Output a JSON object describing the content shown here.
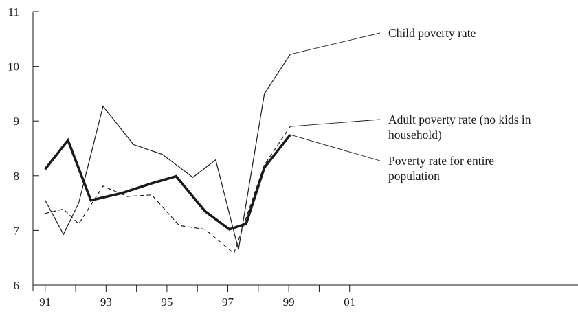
{
  "chart_data": {
    "type": "line",
    "x": [
      1991,
      1992,
      1993,
      1994,
      1995,
      1996,
      1997,
      1998,
      1999,
      2000,
      2001
    ],
    "xlim": [
      1990.6,
      2008.5
    ],
    "ylim": [
      6,
      11
    ],
    "x_ticks": [
      1991,
      1992,
      1993,
      1994,
      1995,
      1996,
      1997,
      1998,
      1999,
      2000,
      2001
    ],
    "x_tick_labels": [
      {
        "x": 1991,
        "label": "91"
      },
      {
        "x": 1993,
        "label": "93"
      },
      {
        "x": 1995,
        "label": "95"
      },
      {
        "x": 1997,
        "label": "97"
      },
      {
        "x": 1999,
        "label": "99"
      },
      {
        "x": 2001,
        "label": "01"
      }
    ],
    "y_ticks": [
      6,
      7,
      8,
      9,
      10,
      11
    ],
    "y_tick_labels": [
      "6",
      "7",
      "8",
      "9",
      "10",
      "11"
    ],
    "grid": false,
    "title": "",
    "xlabel": "",
    "ylabel": "",
    "series": [
      {
        "name": "Child poverty rate",
        "style": "thin-solid",
        "color": "#1a1a1a",
        "label_lines": [
          "Child poverty rate"
        ],
        "points": [
          [
            1991,
            7.55
          ],
          [
            1991.6,
            6.93
          ],
          [
            1992.1,
            7.5
          ],
          [
            1992.9,
            9.27
          ],
          [
            1993.9,
            8.57
          ],
          [
            1994.85,
            8.39
          ],
          [
            1995.85,
            7.97
          ],
          [
            1996.6,
            8.29
          ],
          [
            1997.35,
            6.65
          ],
          [
            1998.2,
            9.5
          ],
          [
            1999.05,
            10.22
          ]
        ]
      },
      {
        "name": "Adult poverty rate (no kids in household)",
        "style": "dashed",
        "color": "#1a1a1a",
        "label_lines": [
          "Adult poverty rate (no kids in",
          "household)"
        ],
        "points": [
          [
            1991,
            7.31
          ],
          [
            1991.6,
            7.39
          ],
          [
            1992.1,
            7.12
          ],
          [
            1992.9,
            7.81
          ],
          [
            1993.7,
            7.62
          ],
          [
            1994.5,
            7.65
          ],
          [
            1995.4,
            7.09
          ],
          [
            1996.25,
            7.02
          ],
          [
            1997.2,
            6.58
          ],
          [
            1998.2,
            8.2
          ],
          [
            1999.05,
            8.9
          ]
        ]
      },
      {
        "name": "Poverty rate for entire population",
        "style": "thick-solid",
        "color": "#1a1a1a",
        "label_lines": [
          "Poverty rate for entire",
          "population"
        ],
        "points": [
          [
            1991,
            8.12
          ],
          [
            1991.75,
            8.65
          ],
          [
            1992.5,
            7.55
          ],
          [
            1993.5,
            7.68
          ],
          [
            1994.5,
            7.86
          ],
          [
            1995.3,
            7.99
          ],
          [
            1996.25,
            7.35
          ],
          [
            1997.05,
            7.02
          ],
          [
            1997.6,
            7.12
          ],
          [
            1998.2,
            8.15
          ],
          [
            1999.05,
            8.75
          ]
        ]
      }
    ]
  }
}
